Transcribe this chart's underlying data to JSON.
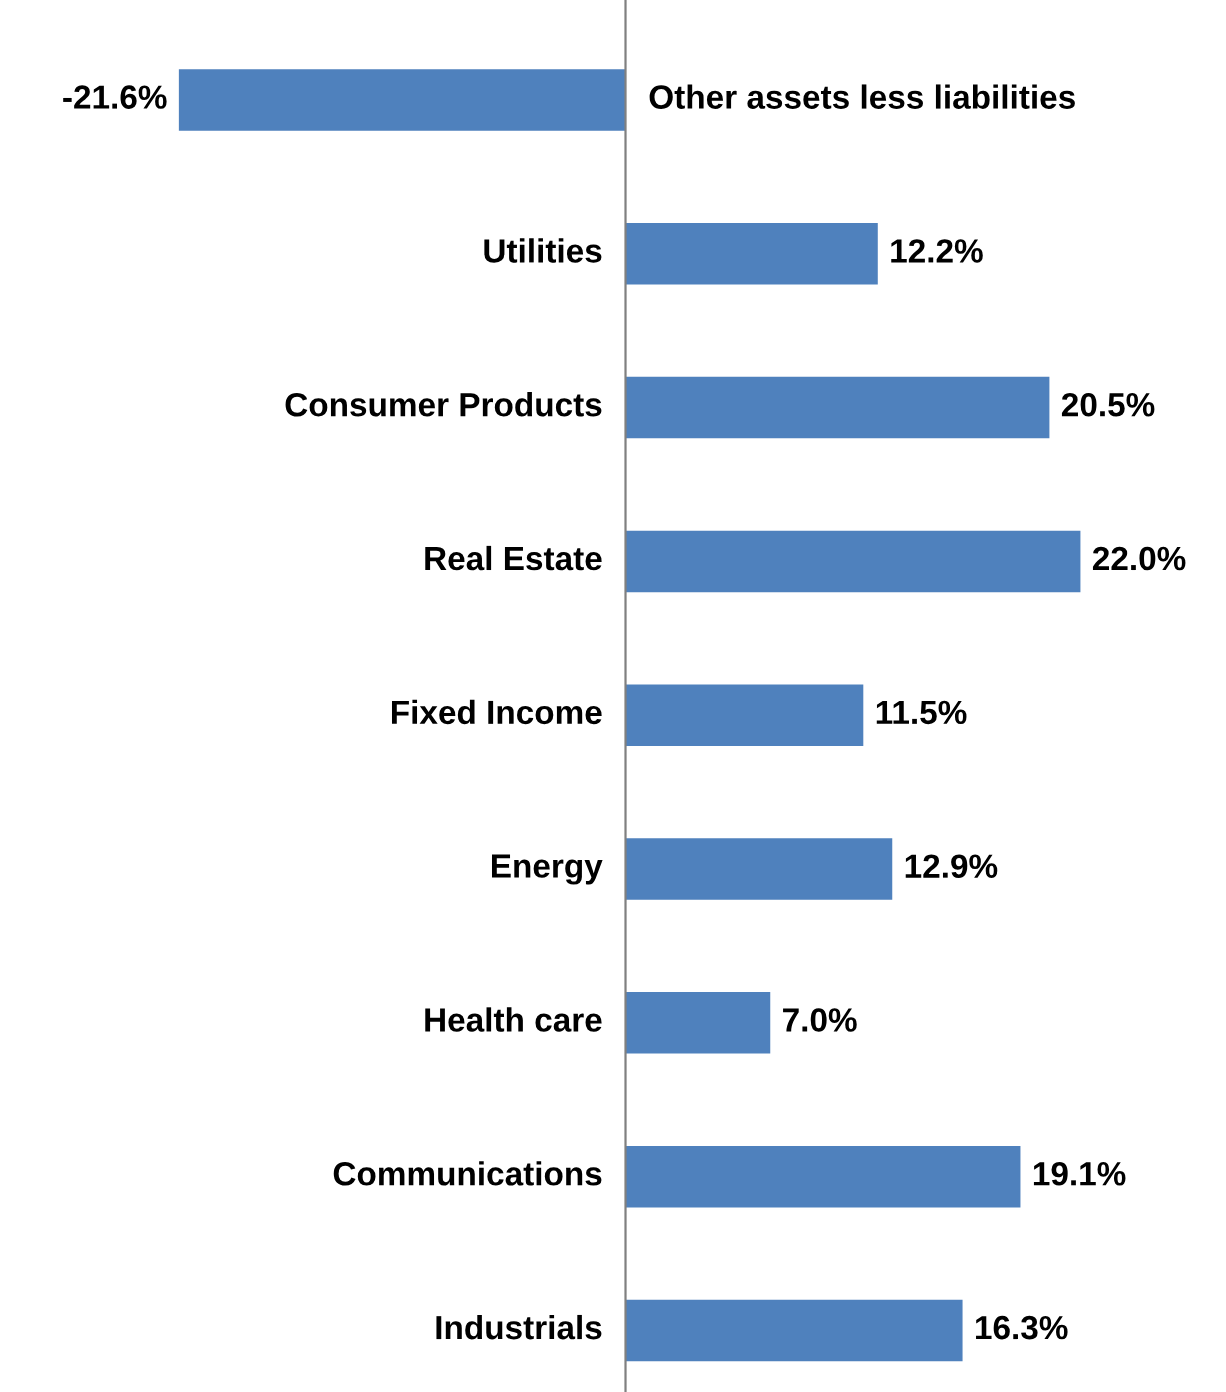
{
  "chart_data": {
    "type": "bar",
    "orientation": "horizontal",
    "categories": [
      "Other assets less liabilities",
      "Utilities",
      "Consumer Products",
      "Real Estate",
      "Fixed Income",
      "Energy",
      "Health care",
      "Communications",
      "Industrials"
    ],
    "values": [
      -21.6,
      12.2,
      20.5,
      22.0,
      11.5,
      12.9,
      7.0,
      19.1,
      16.3
    ],
    "value_labels": [
      "-21.6%",
      "12.2%",
      "20.5%",
      "22.0%",
      "11.5%",
      "12.9%",
      "7.0%",
      "19.1%",
      "16.3%"
    ],
    "color": "#4f81bd"
  }
}
